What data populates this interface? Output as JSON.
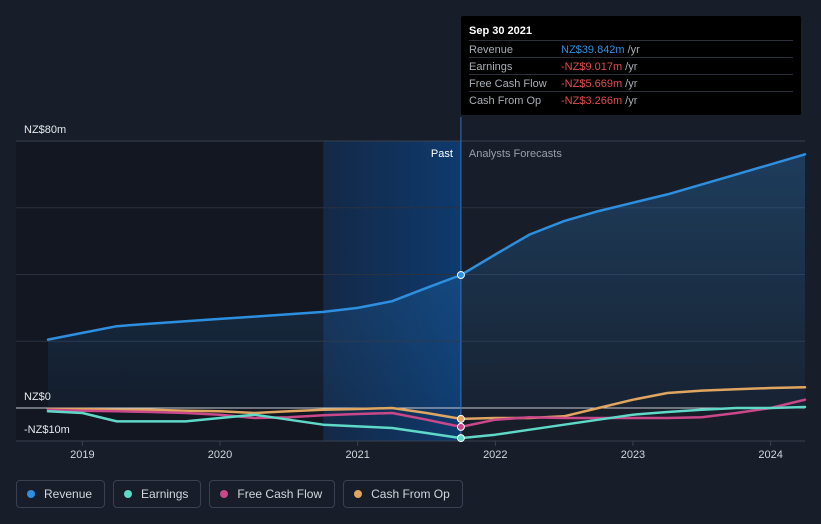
{
  "colors": {
    "revenue": "#2d8fe0",
    "earnings": "#5fd8c8",
    "free_cash_flow": "#c9488a",
    "cash_from_op": "#e0a560",
    "negative": "#e34d4d"
  },
  "tooltip": {
    "date": "Sep 30 2021",
    "unit": "/yr",
    "rows": [
      {
        "label": "Revenue",
        "value": "NZ$39.842m",
        "series": "revenue"
      },
      {
        "label": "Earnings",
        "value": "-NZ$9.017m",
        "series": "negative"
      },
      {
        "label": "Free Cash Flow",
        "value": "-NZ$5.669m",
        "series": "negative"
      },
      {
        "label": "Cash From Op",
        "value": "-NZ$3.266m",
        "series": "negative"
      }
    ]
  },
  "past_label": "Past",
  "forecast_label": "Analysts Forecasts",
  "legend": [
    {
      "label": "Revenue",
      "series": "revenue"
    },
    {
      "label": "Earnings",
      "series": "earnings"
    },
    {
      "label": "Free Cash Flow",
      "series": "free_cash_flow"
    },
    {
      "label": "Cash From Op",
      "series": "cash_from_op"
    }
  ],
  "chart_data": {
    "type": "line",
    "y_tick_labels": [
      "NZ$80m",
      "NZ$0",
      "-NZ$10m"
    ],
    "ylim": [
      -10,
      80
    ],
    "xlim": [
      2018.75,
      2024.25
    ],
    "x_tick_labels": [
      "2019",
      "2020",
      "2021",
      "2022",
      "2023",
      "2024"
    ],
    "x_ticks": [
      2019,
      2020,
      2021,
      2022,
      2023,
      2024
    ],
    "past_end": 2021.75,
    "highlight_start": 2020.75,
    "grid": true,
    "series": [
      {
        "name": "Revenue",
        "key": "revenue",
        "points": [
          [
            2018.75,
            20.5
          ],
          [
            2019.0,
            22.5
          ],
          [
            2019.25,
            24.5
          ],
          [
            2019.5,
            25.3
          ],
          [
            2019.75,
            26.0
          ],
          [
            2020.0,
            26.7
          ],
          [
            2020.25,
            27.4
          ],
          [
            2020.5,
            28.1
          ],
          [
            2020.75,
            28.8
          ],
          [
            2021.0,
            30.0
          ],
          [
            2021.25,
            32.0
          ],
          [
            2021.5,
            36.0
          ],
          [
            2021.75,
            39.842
          ],
          [
            2022.0,
            46.0
          ],
          [
            2022.25,
            52.0
          ],
          [
            2022.5,
            56.0
          ],
          [
            2022.75,
            59.0
          ],
          [
            2023.0,
            61.5
          ],
          [
            2023.25,
            64.0
          ],
          [
            2023.5,
            67.0
          ],
          [
            2023.75,
            70.0
          ],
          [
            2024.0,
            73.0
          ],
          [
            2024.25,
            76.0
          ]
        ]
      },
      {
        "name": "Earnings",
        "key": "earnings",
        "points": [
          [
            2018.75,
            -1.0
          ],
          [
            2019.0,
            -1.5
          ],
          [
            2019.25,
            -4.0
          ],
          [
            2019.5,
            -4.0
          ],
          [
            2019.75,
            -4.0
          ],
          [
            2020.0,
            -3.0
          ],
          [
            2020.25,
            -2.0
          ],
          [
            2020.5,
            -3.5
          ],
          [
            2020.75,
            -5.0
          ],
          [
            2021.0,
            -5.5
          ],
          [
            2021.25,
            -6.0
          ],
          [
            2021.5,
            -7.5
          ],
          [
            2021.75,
            -9.017
          ],
          [
            2022.0,
            -8.0
          ],
          [
            2022.25,
            -6.5
          ],
          [
            2022.5,
            -5.0
          ],
          [
            2022.75,
            -3.5
          ],
          [
            2023.0,
            -2.0
          ],
          [
            2023.25,
            -1.2
          ],
          [
            2023.5,
            -0.5
          ],
          [
            2023.75,
            0.0
          ],
          [
            2024.0,
            0.0
          ],
          [
            2024.25,
            0.3
          ]
        ]
      },
      {
        "name": "Free Cash Flow",
        "key": "free_cash_flow",
        "points": [
          [
            2018.75,
            -0.5
          ],
          [
            2019.0,
            -0.8
          ],
          [
            2019.25,
            -1.0
          ],
          [
            2019.5,
            -1.2
          ],
          [
            2019.75,
            -1.5
          ],
          [
            2020.0,
            -2.0
          ],
          [
            2020.25,
            -3.0
          ],
          [
            2020.5,
            -2.8
          ],
          [
            2020.75,
            -2.2
          ],
          [
            2021.0,
            -1.8
          ],
          [
            2021.25,
            -1.5
          ],
          [
            2021.5,
            -3.5
          ],
          [
            2021.75,
            -5.669
          ],
          [
            2022.0,
            -3.5
          ],
          [
            2022.25,
            -2.8
          ],
          [
            2022.5,
            -3.0
          ],
          [
            2022.75,
            -3.0
          ],
          [
            2023.0,
            -3.0
          ],
          [
            2023.25,
            -3.0
          ],
          [
            2023.5,
            -2.8
          ],
          [
            2023.75,
            -1.5
          ],
          [
            2024.0,
            0.0
          ],
          [
            2024.25,
            2.5
          ]
        ]
      },
      {
        "name": "Cash From Op",
        "key": "cash_from_op",
        "points": [
          [
            2018.75,
            -0.3
          ],
          [
            2019.0,
            -0.3
          ],
          [
            2019.25,
            -0.5
          ],
          [
            2019.5,
            -0.5
          ],
          [
            2019.75,
            -0.8
          ],
          [
            2020.0,
            -1.0
          ],
          [
            2020.25,
            -1.5
          ],
          [
            2020.5,
            -1.0
          ],
          [
            2020.75,
            -0.5
          ],
          [
            2021.0,
            -0.3
          ],
          [
            2021.25,
            0.0
          ],
          [
            2021.5,
            -1.5
          ],
          [
            2021.75,
            -3.266
          ],
          [
            2022.0,
            -3.0
          ],
          [
            2022.25,
            -3.0
          ],
          [
            2022.5,
            -2.5
          ],
          [
            2022.75,
            0.0
          ],
          [
            2023.0,
            2.5
          ],
          [
            2023.25,
            4.5
          ],
          [
            2023.5,
            5.2
          ],
          [
            2023.75,
            5.6
          ],
          [
            2024.0,
            6.0
          ],
          [
            2024.25,
            6.2
          ]
        ]
      }
    ]
  }
}
